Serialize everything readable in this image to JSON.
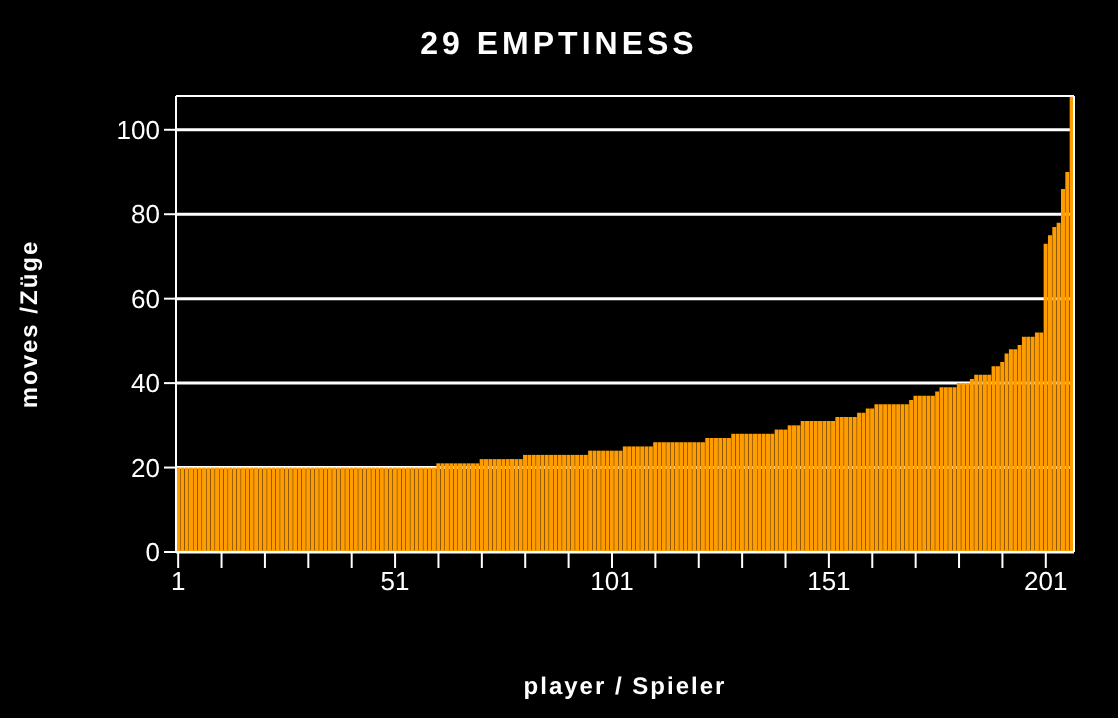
{
  "chart_data": {
    "type": "bar",
    "title": "29 EMPTINESS",
    "xlabel": "player / Spieler",
    "ylabel": "moves /Züge",
    "color": "#ff9c00",
    "grid": "y",
    "x": [
      1,
      2,
      3,
      4,
      5,
      6,
      7,
      8,
      9,
      10,
      11,
      12,
      13,
      14,
      15,
      16,
      17,
      18,
      19,
      20,
      21,
      22,
      23,
      24,
      25,
      26,
      27,
      28,
      29,
      30,
      31,
      32,
      33,
      34,
      35,
      36,
      37,
      38,
      39,
      40,
      41,
      42,
      43,
      44,
      45,
      46,
      47,
      48,
      49,
      50,
      51,
      52,
      53,
      54,
      55,
      56,
      57,
      58,
      59,
      60,
      61,
      62,
      63,
      64,
      65,
      66,
      67,
      68,
      69,
      70,
      71,
      72,
      73,
      74,
      75,
      76,
      77,
      78,
      79,
      80,
      81,
      82,
      83,
      84,
      85,
      86,
      87,
      88,
      89,
      90,
      91,
      92,
      93,
      94,
      95,
      96,
      97,
      98,
      99,
      100,
      101,
      102,
      103,
      104,
      105,
      106,
      107,
      108,
      109,
      110,
      111,
      112,
      113,
      114,
      115,
      116,
      117,
      118,
      119,
      120,
      121,
      122,
      123,
      124,
      125,
      126,
      127,
      128,
      129,
      130,
      131,
      132,
      133,
      134,
      135,
      136,
      137,
      138,
      139,
      140,
      141,
      142,
      143,
      144,
      145,
      146,
      147,
      148,
      149,
      150,
      151,
      152,
      153,
      154,
      155,
      156,
      157,
      158,
      159,
      160,
      161,
      162,
      163,
      164,
      165,
      166,
      167,
      168,
      169,
      170,
      171,
      172,
      173,
      174,
      175,
      176,
      177,
      178,
      179,
      180,
      181,
      182,
      183,
      184,
      185,
      186,
      187,
      188,
      189,
      190,
      191,
      192,
      193,
      194,
      195,
      196,
      197,
      198,
      199,
      200,
      201,
      202,
      203,
      204,
      205,
      206,
      207
    ],
    "values": [
      20,
      20,
      20,
      20,
      20,
      20,
      20,
      20,
      20,
      20,
      20,
      20,
      20,
      20,
      20,
      20,
      20,
      20,
      20,
      20,
      20,
      20,
      20,
      20,
      20,
      20,
      20,
      20,
      20,
      20,
      20,
      20,
      20,
      20,
      20,
      20,
      20,
      20,
      20,
      20,
      20,
      20,
      20,
      20,
      20,
      20,
      20,
      20,
      20,
      20,
      20,
      20,
      20,
      20,
      20,
      20,
      20,
      20,
      20,
      20,
      21,
      21,
      21,
      21,
      21,
      21,
      21,
      21,
      21,
      21,
      22,
      22,
      22,
      22,
      22,
      22,
      22,
      22,
      22,
      22,
      23,
      23,
      23,
      23,
      23,
      23,
      23,
      23,
      23,
      23,
      23,
      23,
      23,
      23,
      23,
      24,
      24,
      24,
      24,
      24,
      24,
      24,
      24,
      25,
      25,
      25,
      25,
      25,
      25,
      25,
      26,
      26,
      26,
      26,
      26,
      26,
      26,
      26,
      26,
      26,
      26,
      26,
      27,
      27,
      27,
      27,
      27,
      27,
      28,
      28,
      28,
      28,
      28,
      28,
      28,
      28,
      28,
      28,
      29,
      29,
      29,
      30,
      30,
      30,
      31,
      31,
      31,
      31,
      31,
      31,
      31,
      31,
      32,
      32,
      32,
      32,
      32,
      33,
      33,
      34,
      34,
      35,
      35,
      35,
      35,
      35,
      35,
      35,
      35,
      36,
      37,
      37,
      37,
      37,
      37,
      38,
      39,
      39,
      39,
      39,
      40,
      40,
      40,
      41,
      42,
      42,
      42,
      42,
      44,
      44,
      45,
      47,
      48,
      48,
      49,
      51,
      51,
      51,
      52,
      52,
      73,
      75,
      77,
      78,
      86,
      90,
      108
    ],
    "xlim": [
      0.5,
      207.5
    ],
    "xticks": [
      1,
      {
        "value": 11,
        "label": null
      },
      {
        "value": 21,
        "label": null
      },
      {
        "value": 31,
        "label": null
      },
      {
        "value": 41,
        "label": null
      },
      51,
      {
        "value": 61,
        "label": null
      },
      {
        "value": 71,
        "label": null
      },
      {
        "value": 81,
        "label": null
      },
      {
        "value": 91,
        "label": null
      },
      101,
      {
        "value": 111,
        "label": null
      },
      {
        "value": 121,
        "label": null
      },
      {
        "value": 131,
        "label": null
      },
      {
        "value": 141,
        "label": null
      },
      151,
      {
        "value": 161,
        "label": null
      },
      {
        "value": 171,
        "label": null
      },
      {
        "value": 181,
        "label": null
      },
      {
        "value": 191,
        "label": null
      },
      201
    ],
    "ylim": [
      0,
      108
    ],
    "yticks": [
      0,
      20,
      40,
      60,
      80,
      100
    ]
  }
}
